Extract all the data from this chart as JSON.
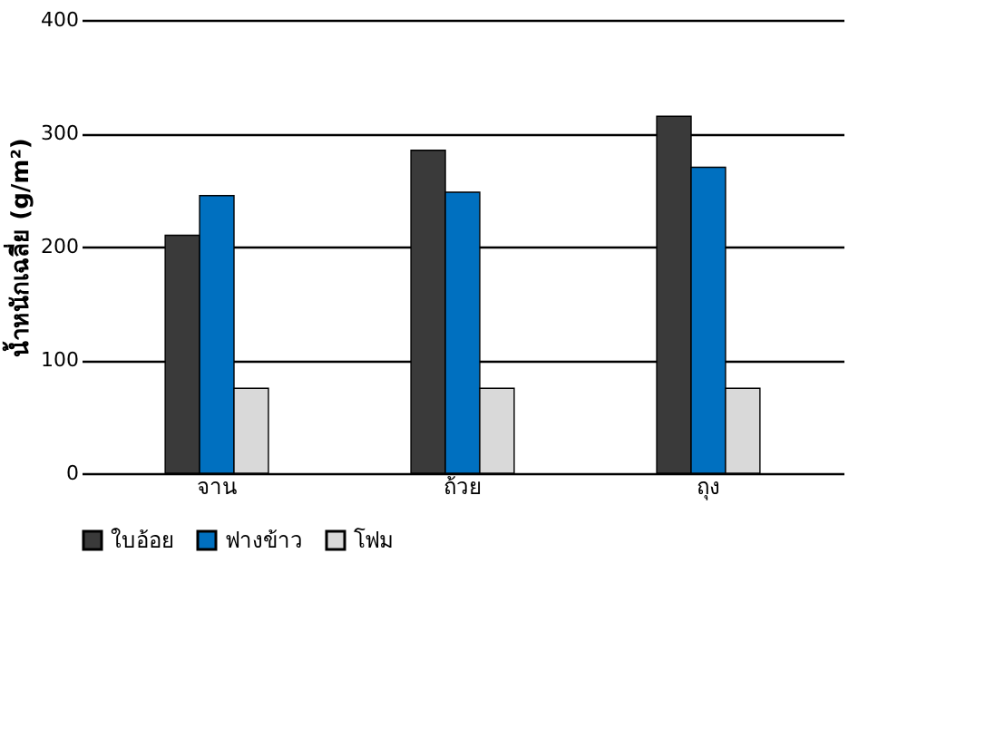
{
  "chart_data": {
    "type": "bar",
    "ylabel": "น้ำหนักเฉลี่ย (g/m²)",
    "categories": [
      "จาน",
      "ถ้วย",
      "ถุง"
    ],
    "series": [
      {
        "name": "ใบอ้อย",
        "color": "#3a3a3a",
        "values": [
          210,
          285,
          315
        ]
      },
      {
        "name": "ฟางข้าว",
        "color": "#0070c0",
        "values": [
          245,
          248,
          270
        ]
      },
      {
        "name": "โฟม",
        "color": "#d9d9d9",
        "values": [
          75,
          75,
          75
        ]
      }
    ],
    "ylim": [
      0,
      400
    ],
    "yticks": [
      0,
      100,
      200,
      300,
      400
    ],
    "grid": "y",
    "legend": "bottom"
  }
}
